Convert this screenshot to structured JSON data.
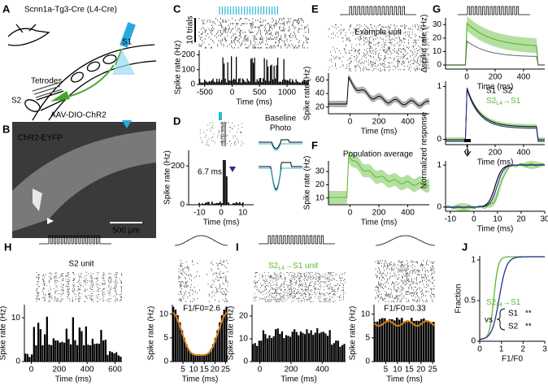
{
  "panels": [
    {
      "label": "A",
      "texts": [
        "Scnn1a-Tg3-Cre (L4-Cre)",
        "S1",
        "Tetrodes",
        "S2",
        "AAV-DIO-ChR2"
      ]
    },
    {
      "label": "B",
      "texts": [
        "ChR2-EYFP",
        "500 μm"
      ]
    },
    {
      "label": "C",
      "texts": [
        "10 trials"
      ],
      "axes": [
        {
          "xlim": [
            -600,
            1400
          ],
          "ylim": [
            0,
            230
          ],
          "xticks": [
            -500,
            0,
            500,
            1000
          ],
          "yticks": [
            0,
            100,
            200
          ],
          "xlabel": "Time (ms)",
          "ylabel": "Spike rate (Hz)"
        }
      ]
    },
    {
      "label": "D",
      "texts": [
        "6.7 ms",
        "Baseline",
        "Photo"
      ],
      "axes": [
        {
          "xlim": [
            -15,
            15
          ],
          "ylim": [
            0,
            280
          ],
          "xticks": [
            -10,
            0,
            10
          ],
          "yticks": [
            0,
            200
          ],
          "xlabel": "Time (ms)",
          "ylabel": "Spike rate (Hz)"
        }
      ]
    },
    {
      "label": "E",
      "texts": [
        "Example unit"
      ],
      "axes": [
        {
          "xlim": [
            -150,
            550
          ],
          "ylim": [
            10,
            70
          ],
          "xticks": [
            0,
            200,
            400
          ],
          "yticks": [
            20,
            40,
            60
          ],
          "xlabel": "Time (ms)",
          "ylabel": "Spike rate (Hz)"
        }
      ]
    },
    {
      "label": "F",
      "texts": [
        "Population average"
      ],
      "axes": [
        {
          "xlim": [
            -150,
            550
          ],
          "ylim": [
            5,
            38
          ],
          "xticks": [
            0,
            200,
            400
          ],
          "yticks": [
            10,
            20,
            30
          ],
          "xlabel": "Time (ms)",
          "ylabel": "Spike rate (Hz)"
        }
      ]
    },
    {
      "label": "G",
      "texts": [
        "S1",
        "S2"
      ],
      "sublabels": [
        {
          "base": "S2",
          "sub": "L4",
          "rest": "→S1"
        }
      ],
      "axes": [
        {
          "xlim": [
            -150,
            550
          ],
          "ylim": [
            -3,
            35
          ],
          "xticks": [
            0,
            200,
            400
          ],
          "yticks": [
            0,
            10,
            20,
            30
          ],
          "xlabel": "Time (ms)",
          "ylabel": "Δspike rate (Hz)"
        },
        {
          "xlim": [
            -150,
            550
          ],
          "ylim": [
            -0.1,
            1.1
          ],
          "xticks": [
            0,
            200,
            400
          ],
          "yticks": [
            0,
            1
          ],
          "xlabel": "Time (ms)",
          "ylabel": "Normalized response"
        },
        {
          "xlim": [
            -12,
            30
          ],
          "ylim": [
            -0.1,
            1.1
          ],
          "xticks": [
            -10,
            0,
            10,
            20,
            30
          ],
          "yticks": [
            0,
            1
          ],
          "xlabel": "Time (ms)"
        }
      ]
    },
    {
      "label": "H",
      "texts": [
        "S2 unit",
        "F1/F0=2.6"
      ],
      "axes": [
        {
          "xlim": [
            -50,
            650
          ],
          "ylim": [
            0,
            13
          ],
          "xticks": [
            0,
            200,
            400,
            600
          ],
          "yticks": [
            0,
            10
          ],
          "xlabel": "Time (ms)",
          "ylabel": "Spike rate (Hz)"
        },
        {
          "xlim": [
            0,
            26
          ],
          "ylim": [
            0,
            12
          ],
          "xticks": [
            5,
            10,
            15,
            20,
            25
          ],
          "yticks": [
            0,
            5,
            10
          ],
          "xlabel": "Time (ms)",
          "ylabel": "Spike rate (Hz)"
        }
      ]
    },
    {
      "label": "I",
      "texts": [
        "F1/F0=0.33"
      ],
      "sublabels": [
        {
          "base": "S2",
          "sub": "L4",
          "rest": "→S1 unit"
        }
      ],
      "axes": [
        {
          "xlim": [
            -50,
            550
          ],
          "ylim": [
            0,
            25
          ],
          "xticks": [
            0,
            200,
            400
          ],
          "yticks": [
            0,
            10,
            20
          ],
          "xlabel": "Time (ms)",
          "ylabel": "Spike rate (Hz)"
        },
        {
          "xlim": [
            0,
            26
          ],
          "ylim": [
            0,
            12
          ],
          "xticks": [
            5,
            10,
            15,
            20,
            25
          ],
          "yticks": [
            0,
            5,
            10
          ],
          "xlabel": "Time (ms)",
          "ylabel": "Spike rate (Hz)"
        }
      ]
    },
    {
      "label": "J",
      "texts": [
        "vs",
        "S1",
        "**",
        "S2",
        "**"
      ],
      "sublabels": [
        {
          "base": "S2",
          "sub": "L4",
          "rest": "→S1"
        }
      ],
      "axes": [
        {
          "xlim": [
            0,
            3
          ],
          "ylim": [
            0,
            1.05
          ],
          "xticks": [
            0,
            1,
            2,
            3
          ],
          "yticks": [
            0,
            0.5,
            1
          ],
          "xlabel": "F1/F0",
          "ylabel": "Fraction"
        }
      ]
    }
  ]
}
